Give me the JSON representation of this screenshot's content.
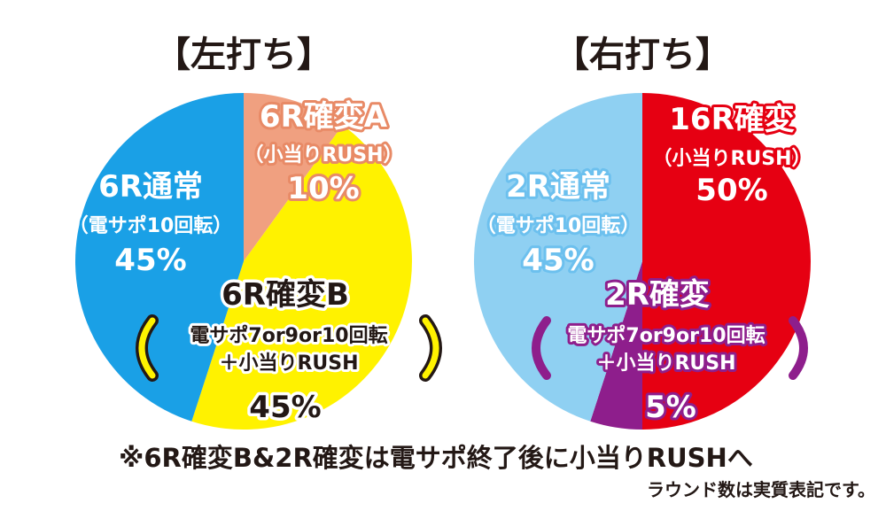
{
  "chart_data": [
    {
      "type": "pie",
      "title": "【左打ち】",
      "slices": [
        {
          "name": "6R確変A",
          "sub": "（小当りRUSH）",
          "value": 10,
          "label": "10%",
          "color": "#F0A080",
          "text_color": "#ffffff",
          "outline": "#E88A66"
        },
        {
          "name": "6R確変B",
          "sub": "電サポ7or9or10回転",
          "sub2": "＋小当りRUSH",
          "value": 45,
          "label": "45%",
          "color": "#FFF200",
          "text_color": "#231815",
          "outline": "#ffffff"
        },
        {
          "name": "6R通常",
          "sub": "（電サポ10回転）",
          "value": 45,
          "label": "45%",
          "color": "#1AA0E6",
          "text_color": "#ffffff",
          "outline": "#1AA0E6"
        }
      ]
    },
    {
      "type": "pie",
      "title": "【右打ち】",
      "slices": [
        {
          "name": "16R確変",
          "sub": "（小当りRUSH）",
          "value": 50,
          "label": "50%",
          "color": "#E60012",
          "text_color": "#ffffff",
          "outline": "#E60012"
        },
        {
          "name": "2R確変",
          "sub": "電サポ7or9or10回転",
          "sub2": "＋小当りRUSH",
          "value": 5,
          "label": "5%",
          "color": "#8E1E8C",
          "text_color": "#ffffff",
          "outline": "#8E1E8C"
        },
        {
          "name": "2R通常",
          "sub": "（電サポ10回転）",
          "value": 45,
          "label": "45%",
          "color": "#8FD0F2",
          "text_color": "#ffffff",
          "outline": "#6CC0EE"
        }
      ]
    }
  ],
  "notes": {
    "main": "※6R確変B&2R確変は電サポ終了後に小当りRUSHへ",
    "sub": "ラウンド数は実質表記です。"
  },
  "colors": {
    "bracket_left": "#FFF200",
    "bracket_right": "#8E1E8C",
    "text_dark": "#231815"
  }
}
